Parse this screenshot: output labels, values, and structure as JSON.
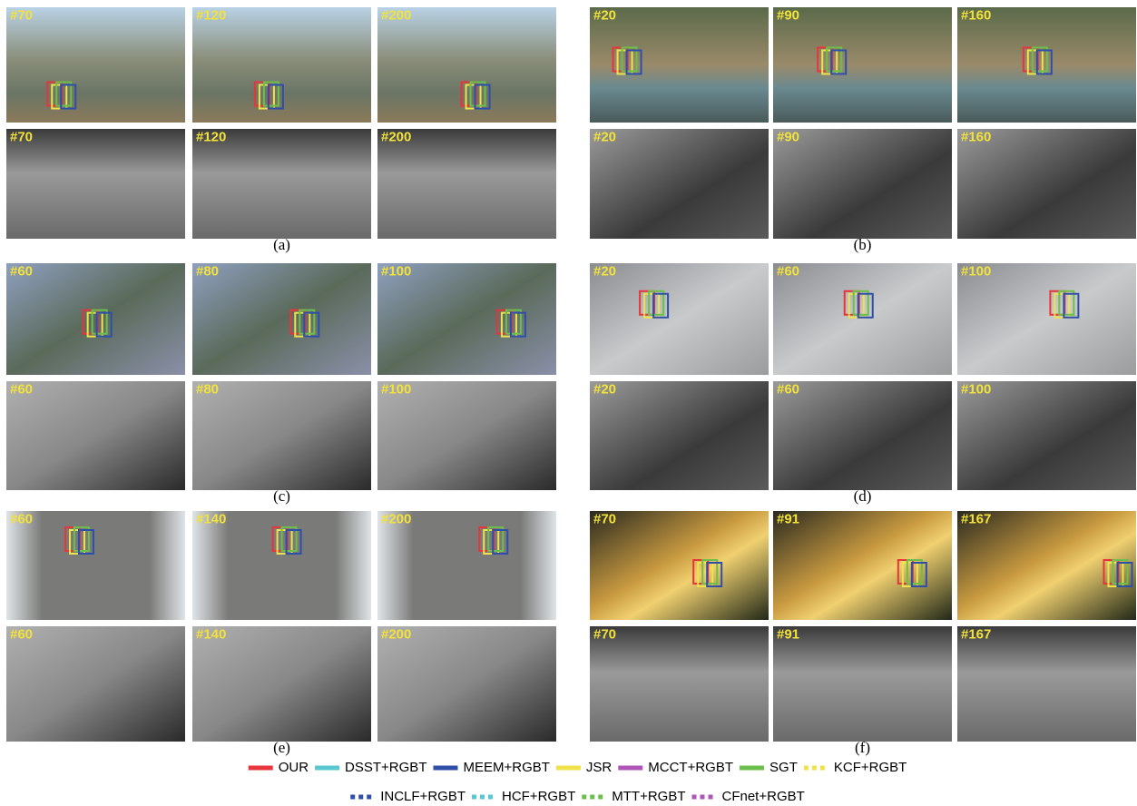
{
  "panels": [
    {
      "label": "(a)",
      "frames": [
        "#70",
        "#120",
        "#200"
      ]
    },
    {
      "label": "(b)",
      "frames": [
        "#20",
        "#90",
        "#160"
      ]
    },
    {
      "label": "(c)",
      "frames": [
        "#60",
        "#80",
        "#100"
      ]
    },
    {
      "label": "(d)",
      "frames": [
        "#20",
        "#60",
        "#100"
      ]
    },
    {
      "label": "(e)",
      "frames": [
        "#60",
        "#140",
        "#200"
      ]
    },
    {
      "label": "(f)",
      "frames": [
        "#70",
        "#91",
        "#167"
      ]
    }
  ],
  "legend": [
    {
      "name": "OUR",
      "color": "#e8343b",
      "style": "solid"
    },
    {
      "name": "DSST+RGBT",
      "color": "#5ac8d2",
      "style": "solid"
    },
    {
      "name": "MEEM+RGBT",
      "color": "#2f4ea8",
      "style": "solid"
    },
    {
      "name": "JSR",
      "color": "#f0e24a",
      "style": "solid"
    },
    {
      "name": "MCCT+RGBT",
      "color": "#b055b8",
      "style": "solid"
    },
    {
      "name": "SGT",
      "color": "#6cbf4a",
      "style": "solid"
    },
    {
      "name": "KCF+RGBT",
      "color": "#f0e24a",
      "style": "dashed"
    },
    {
      "name": "INCLF+RGBT",
      "color": "#2f4ea8",
      "style": "dashed"
    },
    {
      "name": "HCF+RGBT",
      "color": "#5ac8d2",
      "style": "dashed"
    },
    {
      "name": "MTT+RGBT",
      "color": "#6cbf4a",
      "style": "dashed"
    },
    {
      "name": "CFnet+RGBT",
      "color": "#b055b8",
      "style": "dashed"
    }
  ]
}
